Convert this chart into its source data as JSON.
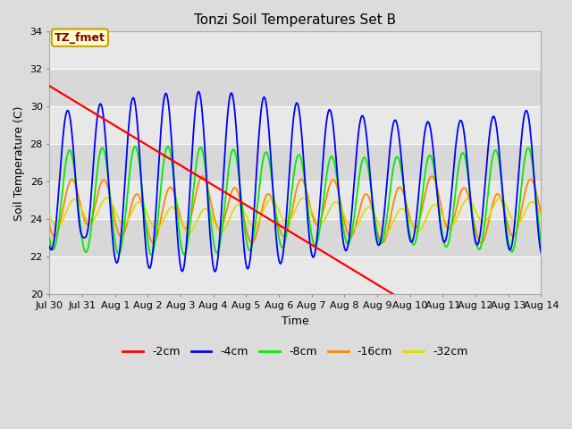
{
  "title": "Tonzi Soil Temperatures Set B",
  "xlabel": "Time",
  "ylabel": "Soil Temperature (C)",
  "ylim": [
    20,
    34
  ],
  "yticks": [
    20,
    22,
    24,
    26,
    28,
    30,
    32,
    34
  ],
  "xtick_labels": [
    "Jul 30",
    "Jul 31",
    "Aug 1",
    "Aug 2",
    "Aug 3",
    "Aug 4",
    "Aug 5",
    "Aug 6",
    "Aug 7",
    "Aug 8",
    "Aug 9",
    "Aug 10",
    "Aug 11",
    "Aug 12",
    "Aug 13",
    "Aug 14"
  ],
  "background_color": "#dcdcdc",
  "plot_bg_color": "#ebebeb",
  "grid_color": "#ffffff",
  "annotation_text": "TZ_fmet",
  "annotation_bg": "#ffffcc",
  "annotation_border": "#c8a000",
  "annotation_text_color": "#8b0000",
  "colors": {
    "neg2cm": "#ff0000",
    "neg4cm": "#0000ff",
    "neg8cm": "#00ee00",
    "neg16cm": "#ff8800",
    "neg32cm": "#dddd00"
  },
  "labels": [
    "-2cm",
    "-4cm",
    "-8cm",
    "-16cm",
    "-32cm"
  ],
  "red_line_x": [
    0.0,
    10.5
  ],
  "red_line_y": [
    31.1,
    20.0
  ],
  "lw": 1.3
}
